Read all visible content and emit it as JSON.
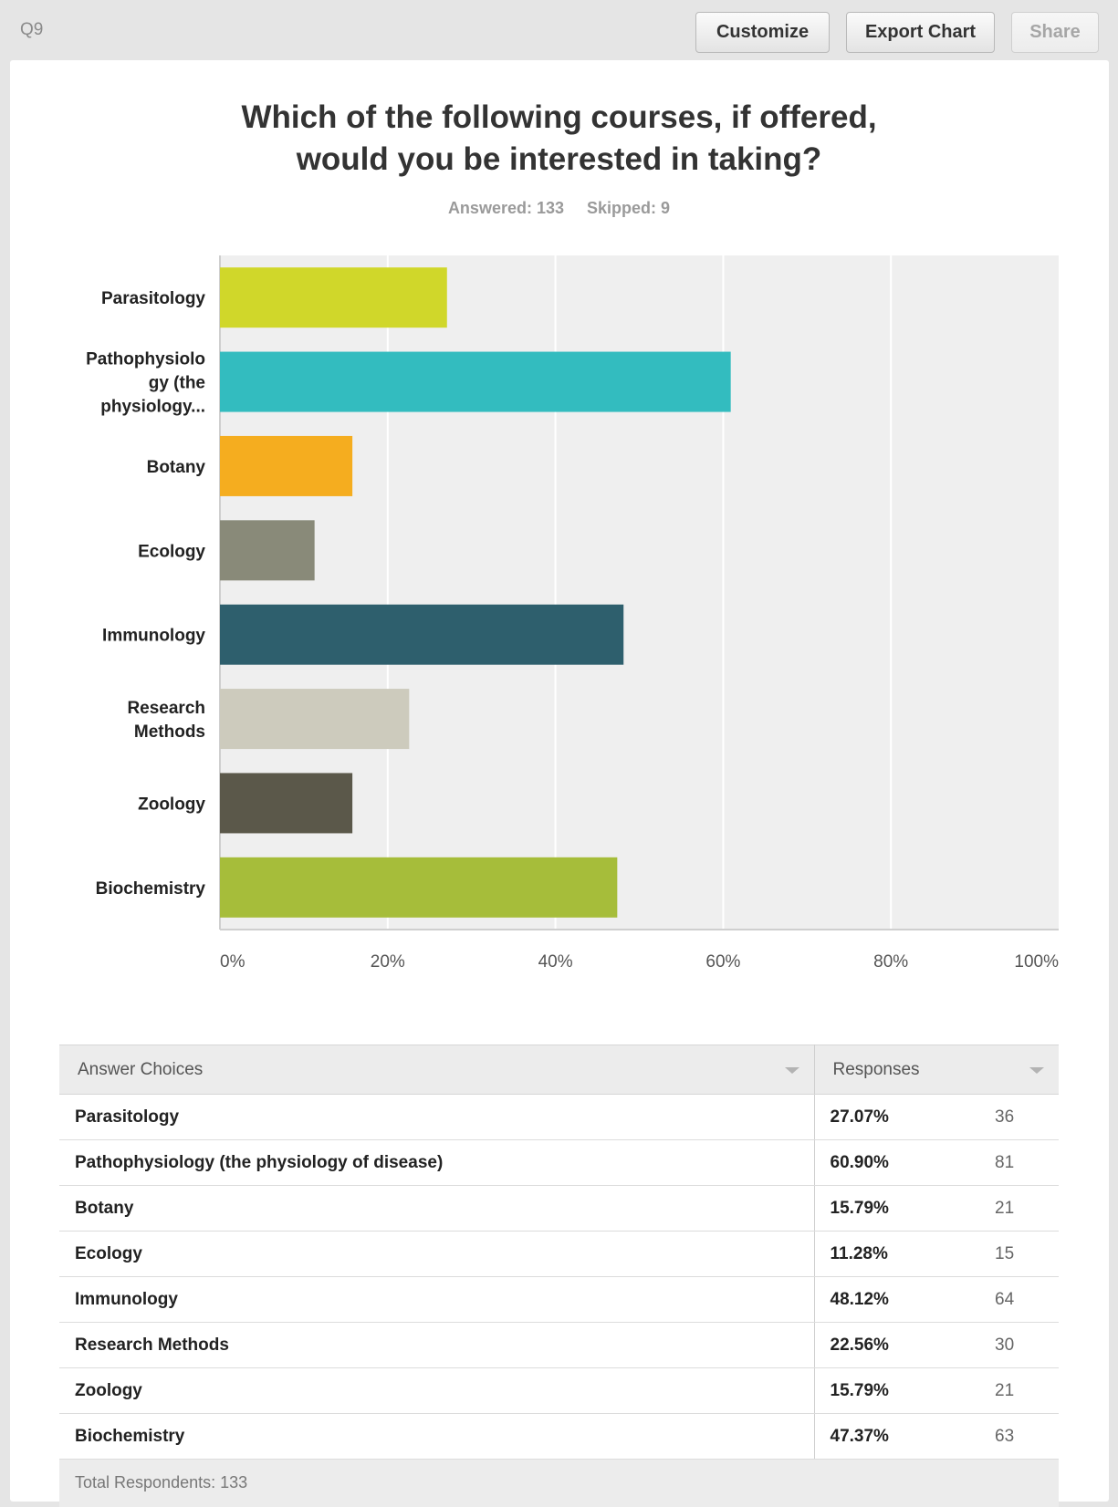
{
  "header": {
    "question_id": "Q9",
    "customize_label": "Customize",
    "export_label": "Export Chart",
    "share_label": "Share"
  },
  "question": {
    "title_line1": "Which of the following courses, if offered,",
    "title_line2": "would you be interested in taking?",
    "answered": "Answered: 133",
    "skipped": "Skipped: 9"
  },
  "chart_data": {
    "type": "bar",
    "orientation": "horizontal",
    "title": "Which of the following courses, if offered, would you be interested in taking?",
    "categories": [
      [
        "Parasitology"
      ],
      [
        "Pathophysiolo",
        "gy (the",
        "physiology..."
      ],
      [
        "Botany"
      ],
      [
        "Ecology"
      ],
      [
        "Immunology"
      ],
      [
        "Research",
        "Methods"
      ],
      [
        "Zoology"
      ],
      [
        "Biochemistry"
      ]
    ],
    "values": [
      27.07,
      60.9,
      15.79,
      11.28,
      48.12,
      22.56,
      15.79,
      47.37
    ],
    "colors": [
      "#d0d72a",
      "#33bcbf",
      "#f5ad1f",
      "#898a79",
      "#2e5f6d",
      "#cdcbbd",
      "#5b584a",
      "#a6bd3a"
    ],
    "xlim": [
      0,
      100
    ],
    "xticks": [
      "0%",
      "20%",
      "40%",
      "60%",
      "80%",
      "100%"
    ],
    "xlabel": "",
    "ylabel": "",
    "grid": true,
    "plot_background": "#efefef"
  },
  "table": {
    "col_answer": "Answer Choices",
    "col_responses": "Responses",
    "rows": [
      {
        "label": "Parasitology",
        "pct": "27.07%",
        "count": "36"
      },
      {
        "label": "Pathophysiology (the physiology of disease)",
        "pct": "60.90%",
        "count": "81"
      },
      {
        "label": "Botany",
        "pct": "15.79%",
        "count": "21"
      },
      {
        "label": "Ecology",
        "pct": "11.28%",
        "count": "15"
      },
      {
        "label": "Immunology",
        "pct": "48.12%",
        "count": "64"
      },
      {
        "label": "Research Methods",
        "pct": "22.56%",
        "count": "30"
      },
      {
        "label": "Zoology",
        "pct": "15.79%",
        "count": "21"
      },
      {
        "label": "Biochemistry",
        "pct": "47.37%",
        "count": "63"
      }
    ],
    "footer": "Total Respondents: 133"
  }
}
